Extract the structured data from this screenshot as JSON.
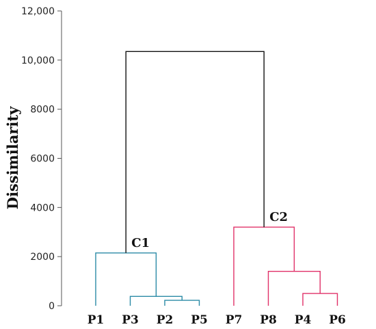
{
  "chart_data": {
    "type": "dendrogram",
    "ylabel": "Dissimilarity",
    "ylim": [
      0,
      12000
    ],
    "yticks": [
      0,
      2000,
      4000,
      6000,
      8000,
      10000,
      12000
    ],
    "ytick_labels": [
      "0",
      "2000",
      "4000",
      "6000",
      "8000",
      "10,000",
      "12,000"
    ],
    "leaves": [
      "P1",
      "P3",
      "P2",
      "P5",
      "P7",
      "P8",
      "P4",
      "P6"
    ],
    "colors": {
      "c1": "#2a8aa6",
      "c2": "#e03068",
      "root": "#111111"
    },
    "merges": [
      {
        "left": "P2",
        "right": "P5",
        "height": 220,
        "color": "c1"
      },
      {
        "left": "P3",
        "right": "P2+P5",
        "height": 380,
        "color": "c1"
      },
      {
        "left": "P1",
        "right": "P3+P2+P5",
        "height": 2150,
        "color": "c1",
        "label": "C1"
      },
      {
        "left": "P4",
        "right": "P6",
        "height": 500,
        "color": "c2"
      },
      {
        "left": "P8",
        "right": "P4+P6",
        "height": 1400,
        "color": "c2"
      },
      {
        "left": "P7",
        "right": "P8+P4+P6",
        "height": 3200,
        "color": "c2",
        "label": "C2"
      },
      {
        "left": "C1",
        "right": "C2",
        "height": 10350,
        "color": "root"
      }
    ]
  }
}
